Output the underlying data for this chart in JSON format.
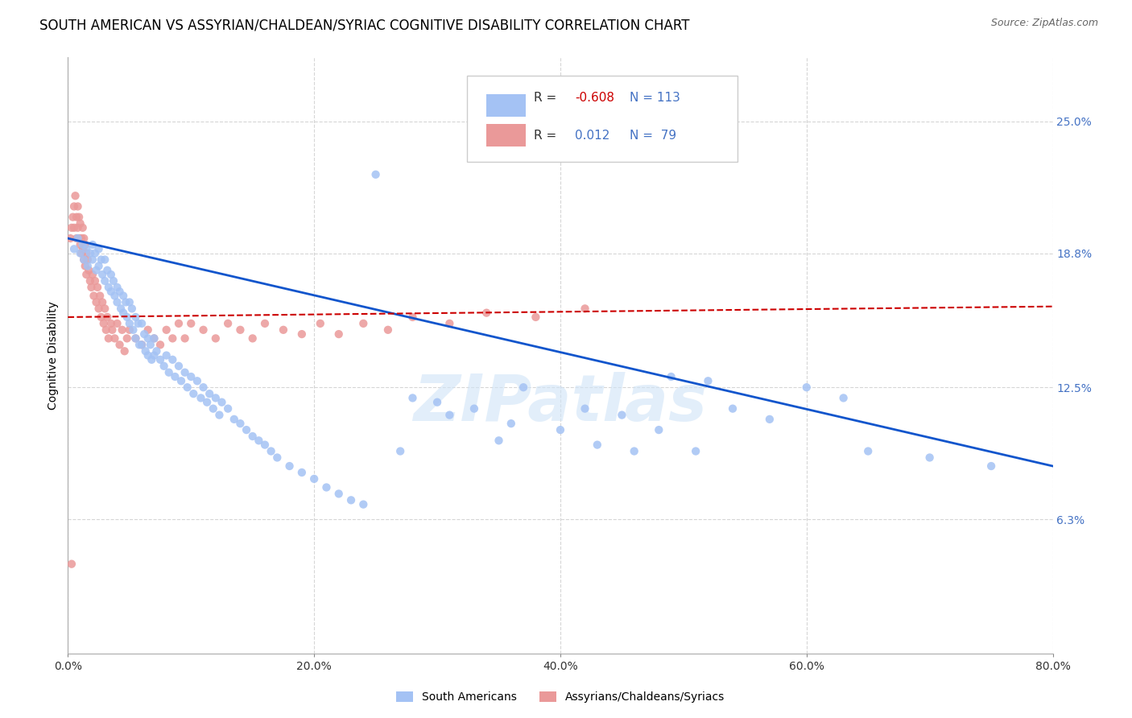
{
  "title": "SOUTH AMERICAN VS ASSYRIAN/CHALDEAN/SYRIAC COGNITIVE DISABILITY CORRELATION CHART",
  "source": "Source: ZipAtlas.com",
  "ylabel": "Cognitive Disability",
  "xlim": [
    0.0,
    0.8
  ],
  "ylim": [
    0.0,
    0.28
  ],
  "ytick_labels": [
    "6.3%",
    "12.5%",
    "18.8%",
    "25.0%"
  ],
  "ytick_values": [
    0.063,
    0.125,
    0.188,
    0.25
  ],
  "xtick_labels": [
    "0.0%",
    "20.0%",
    "40.0%",
    "60.0%",
    "80.0%"
  ],
  "xtick_values": [
    0.0,
    0.2,
    0.4,
    0.6,
    0.8
  ],
  "blue_R": "-0.608",
  "blue_N": "113",
  "pink_R": "0.012",
  "pink_N": "79",
  "blue_color": "#a4c2f4",
  "pink_color": "#ea9999",
  "blue_line_color": "#1155cc",
  "pink_line_color": "#cc0000",
  "legend_label_blue": "South Americans",
  "legend_label_pink": "Assyrians/Chaldeans/Syriacs",
  "watermark": "ZIPatlas",
  "title_fontsize": 12,
  "axis_label_fontsize": 10,
  "tick_fontsize": 10,
  "blue_scatter_x": [
    0.005,
    0.008,
    0.01,
    0.012,
    0.013,
    0.015,
    0.016,
    0.018,
    0.02,
    0.02,
    0.022,
    0.023,
    0.025,
    0.025,
    0.027,
    0.028,
    0.03,
    0.03,
    0.032,
    0.033,
    0.035,
    0.035,
    0.037,
    0.038,
    0.04,
    0.04,
    0.042,
    0.043,
    0.045,
    0.045,
    0.047,
    0.048,
    0.05,
    0.05,
    0.052,
    0.053,
    0.055,
    0.055,
    0.057,
    0.058,
    0.06,
    0.06,
    0.062,
    0.063,
    0.065,
    0.065,
    0.067,
    0.068,
    0.07,
    0.07,
    0.072,
    0.075,
    0.078,
    0.08,
    0.082,
    0.085,
    0.087,
    0.09,
    0.092,
    0.095,
    0.097,
    0.1,
    0.102,
    0.105,
    0.108,
    0.11,
    0.113,
    0.115,
    0.118,
    0.12,
    0.123,
    0.125,
    0.13,
    0.135,
    0.14,
    0.145,
    0.15,
    0.155,
    0.16,
    0.165,
    0.17,
    0.18,
    0.19,
    0.2,
    0.21,
    0.22,
    0.23,
    0.24,
    0.25,
    0.27,
    0.3,
    0.33,
    0.36,
    0.4,
    0.43,
    0.46,
    0.49,
    0.52,
    0.37,
    0.28,
    0.31,
    0.35,
    0.42,
    0.45,
    0.48,
    0.51,
    0.54,
    0.57,
    0.6,
    0.63,
    0.65,
    0.7,
    0.75
  ],
  "blue_scatter_y": [
    0.19,
    0.195,
    0.188,
    0.192,
    0.185,
    0.19,
    0.182,
    0.188,
    0.192,
    0.185,
    0.188,
    0.18,
    0.19,
    0.182,
    0.185,
    0.178,
    0.185,
    0.175,
    0.18,
    0.172,
    0.178,
    0.17,
    0.175,
    0.168,
    0.172,
    0.165,
    0.17,
    0.162,
    0.168,
    0.16,
    0.165,
    0.158,
    0.165,
    0.155,
    0.162,
    0.152,
    0.158,
    0.148,
    0.155,
    0.145,
    0.155,
    0.145,
    0.15,
    0.142,
    0.148,
    0.14,
    0.145,
    0.138,
    0.148,
    0.14,
    0.142,
    0.138,
    0.135,
    0.14,
    0.132,
    0.138,
    0.13,
    0.135,
    0.128,
    0.132,
    0.125,
    0.13,
    0.122,
    0.128,
    0.12,
    0.125,
    0.118,
    0.122,
    0.115,
    0.12,
    0.112,
    0.118,
    0.115,
    0.11,
    0.108,
    0.105,
    0.102,
    0.1,
    0.098,
    0.095,
    0.092,
    0.088,
    0.085,
    0.082,
    0.078,
    0.075,
    0.072,
    0.07,
    0.225,
    0.095,
    0.118,
    0.115,
    0.108,
    0.105,
    0.098,
    0.095,
    0.13,
    0.128,
    0.125,
    0.12,
    0.112,
    0.1,
    0.115,
    0.112,
    0.105,
    0.095,
    0.115,
    0.11,
    0.125,
    0.12,
    0.095,
    0.092,
    0.088
  ],
  "pink_scatter_x": [
    0.002,
    0.003,
    0.004,
    0.005,
    0.005,
    0.006,
    0.007,
    0.007,
    0.008,
    0.008,
    0.009,
    0.009,
    0.01,
    0.01,
    0.011,
    0.011,
    0.012,
    0.012,
    0.013,
    0.013,
    0.014,
    0.014,
    0.015,
    0.015,
    0.016,
    0.017,
    0.018,
    0.019,
    0.02,
    0.021,
    0.022,
    0.023,
    0.024,
    0.025,
    0.026,
    0.027,
    0.028,
    0.029,
    0.03,
    0.031,
    0.032,
    0.033,
    0.035,
    0.036,
    0.038,
    0.04,
    0.042,
    0.044,
    0.046,
    0.048,
    0.05,
    0.055,
    0.06,
    0.065,
    0.07,
    0.075,
    0.08,
    0.085,
    0.09,
    0.095,
    0.1,
    0.11,
    0.12,
    0.13,
    0.14,
    0.15,
    0.16,
    0.175,
    0.19,
    0.205,
    0.22,
    0.24,
    0.26,
    0.28,
    0.31,
    0.34,
    0.38,
    0.42,
    0.003
  ],
  "pink_scatter_y": [
    0.195,
    0.2,
    0.205,
    0.21,
    0.2,
    0.215,
    0.205,
    0.195,
    0.21,
    0.2,
    0.195,
    0.205,
    0.192,
    0.202,
    0.195,
    0.188,
    0.2,
    0.19,
    0.195,
    0.185,
    0.192,
    0.182,
    0.188,
    0.178,
    0.185,
    0.18,
    0.175,
    0.172,
    0.178,
    0.168,
    0.175,
    0.165,
    0.172,
    0.162,
    0.168,
    0.158,
    0.165,
    0.155,
    0.162,
    0.152,
    0.158,
    0.148,
    0.155,
    0.152,
    0.148,
    0.155,
    0.145,
    0.152,
    0.142,
    0.148,
    0.152,
    0.148,
    0.145,
    0.152,
    0.148,
    0.145,
    0.152,
    0.148,
    0.155,
    0.148,
    0.155,
    0.152,
    0.148,
    0.155,
    0.152,
    0.148,
    0.155,
    0.152,
    0.15,
    0.155,
    0.15,
    0.155,
    0.152,
    0.158,
    0.155,
    0.16,
    0.158,
    0.162,
    0.042
  ]
}
